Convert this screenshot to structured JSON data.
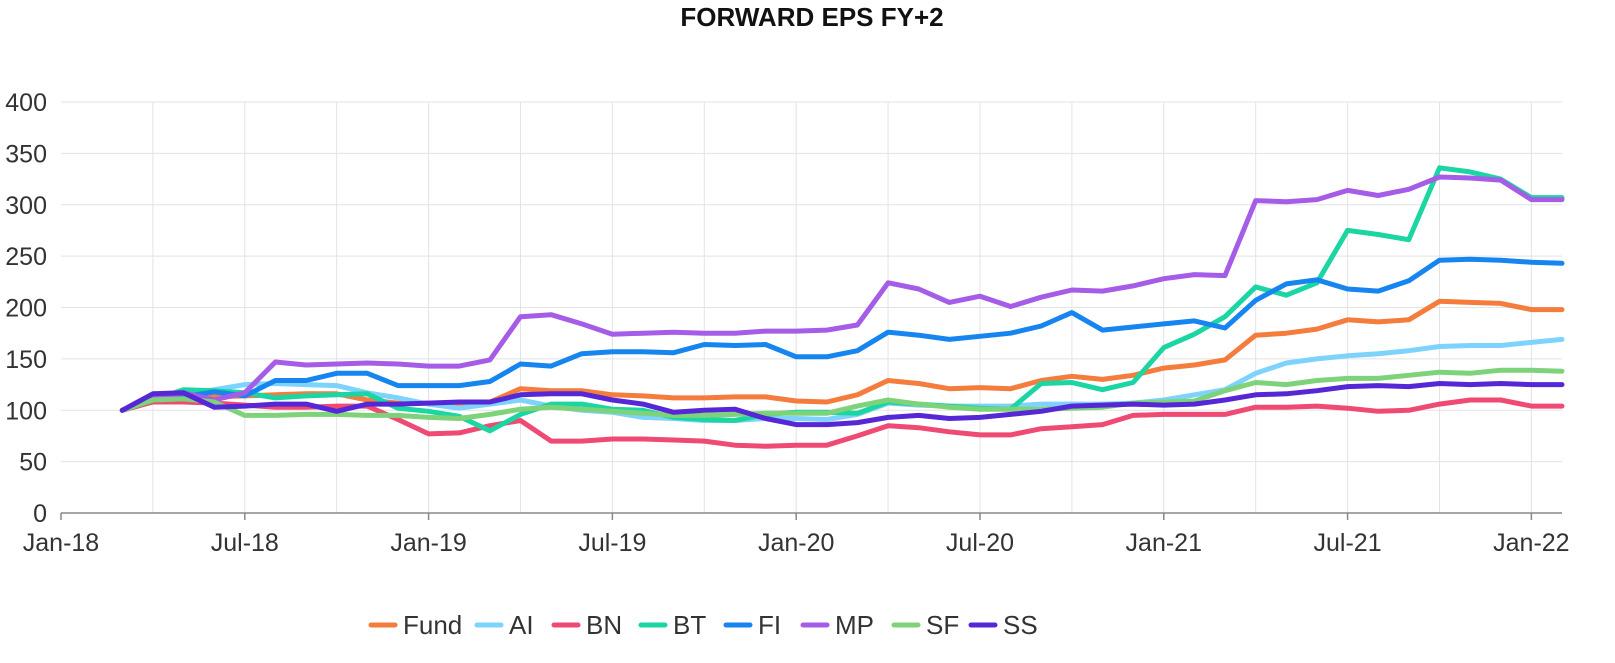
{
  "chart_data": {
    "type": "line",
    "title": "FORWARD EPS FY+2",
    "xlabel": "",
    "ylabel": "",
    "ylim": [
      0,
      400
    ],
    "yticks": [
      "0",
      "50",
      "100",
      "150",
      "200",
      "250",
      "300",
      "350",
      "400"
    ],
    "xticks": [
      "Jan-18",
      "Jul-18",
      "Jan-19",
      "Jul-19",
      "Jan-20",
      "Jul-20",
      "Jan-21",
      "Jul-21",
      "Jan-22"
    ],
    "grid": true,
    "legend": "bottom",
    "x": [
      "Mar-18",
      "Apr-18",
      "May-18",
      "Jun-18",
      "Jul-18",
      "Aug-18",
      "Sep-18",
      "Oct-18",
      "Nov-18",
      "Dec-18",
      "Jan-19",
      "Feb-19",
      "Mar-19",
      "Apr-19",
      "May-19",
      "Jun-19",
      "Jul-19",
      "Aug-19",
      "Sep-19",
      "Oct-19",
      "Nov-19",
      "Dec-19",
      "Jan-20",
      "Feb-20",
      "Mar-20",
      "Apr-20",
      "May-20",
      "Jun-20",
      "Jul-20",
      "Aug-20",
      "Sep-20",
      "Oct-20",
      "Nov-20",
      "Dec-20",
      "Jan-21",
      "Feb-21",
      "Mar-21",
      "Apr-21",
      "May-21",
      "Jun-21",
      "Jul-21",
      "Aug-21",
      "Sep-21",
      "Oct-21",
      "Nov-21",
      "Dec-21",
      "Jan-22",
      "Feb-22"
    ],
    "series": [
      {
        "name": "Fund",
        "color": "#f47c3c",
        "values": [
          100,
          112,
          112,
          113,
          114,
          115,
          116,
          116,
          110,
          107,
          107,
          107,
          108,
          121,
          119,
          119,
          115,
          114,
          112,
          112,
          113,
          113,
          109,
          108,
          115,
          129,
          126,
          121,
          122,
          121,
          129,
          133,
          130,
          134,
          141,
          144,
          149,
          173,
          175,
          179,
          188,
          186,
          188,
          206,
          205,
          204,
          198,
          198
        ]
      },
      {
        "name": "AI",
        "color": "#7dd3fb",
        "values": [
          100,
          112,
          115,
          120,
          125,
          126,
          125,
          124,
          117,
          112,
          106,
          102,
          106,
          110,
          104,
          100,
          98,
          93,
          92,
          90,
          90,
          92,
          92,
          91,
          96,
          107,
          105,
          104,
          104,
          104,
          106,
          106,
          106,
          107,
          110,
          115,
          120,
          136,
          146,
          150,
          153,
          155,
          158,
          162,
          163,
          163,
          166,
          169
        ]
      },
      {
        "name": "BN",
        "color": "#ee4a73",
        "values": [
          100,
          108,
          108,
          107,
          105,
          103,
          103,
          104,
          104,
          91,
          77,
          78,
          85,
          90,
          70,
          70,
          72,
          72,
          71,
          70,
          66,
          65,
          66,
          66,
          75,
          85,
          83,
          79,
          76,
          76,
          82,
          84,
          86,
          95,
          96,
          96,
          96,
          103,
          103,
          104,
          102,
          99,
          100,
          106,
          110,
          110,
          104,
          104
        ]
      },
      {
        "name": "BT",
        "color": "#1bd6a2",
        "values": [
          100,
          110,
          120,
          119,
          117,
          112,
          114,
          115,
          116,
          102,
          99,
          94,
          80,
          96,
          106,
          106,
          101,
          100,
          93,
          91,
          90,
          96,
          98,
          98,
          97,
          108,
          106,
          104,
          102,
          101,
          126,
          127,
          120,
          127,
          161,
          174,
          191,
          220,
          212,
          224,
          275,
          271,
          266,
          336,
          332,
          325,
          307,
          307
        ]
      },
      {
        "name": "FI",
        "color": "#1685f0",
        "values": [
          100,
          111,
          113,
          118,
          114,
          129,
          129,
          136,
          136,
          124,
          124,
          124,
          128,
          145,
          143,
          155,
          157,
          157,
          156,
          164,
          163,
          164,
          152,
          152,
          158,
          176,
          173,
          169,
          172,
          175,
          182,
          195,
          178,
          181,
          184,
          187,
          180,
          207,
          223,
          227,
          218,
          216,
          226,
          246,
          247,
          246,
          244,
          243
        ]
      },
      {
        "name": "MP",
        "color": "#a55de8",
        "values": [
          100,
          112,
          117,
          110,
          117,
          147,
          144,
          145,
          146,
          145,
          143,
          143,
          149,
          191,
          193,
          184,
          174,
          175,
          176,
          175,
          175,
          177,
          177,
          178,
          183,
          224,
          218,
          205,
          211,
          201,
          210,
          217,
          216,
          221,
          228,
          232,
          231,
          304,
          303,
          305,
          314,
          309,
          315,
          327,
          326,
          324,
          305,
          305
        ]
      },
      {
        "name": "SF",
        "color": "#7ed37a",
        "values": [
          100,
          110,
          111,
          108,
          95,
          95,
          96,
          96,
          95,
          95,
          93,
          92,
          96,
          101,
          103,
          101,
          99,
          97,
          95,
          95,
          96,
          97,
          97,
          97,
          104,
          110,
          106,
          103,
          101,
          101,
          101,
          102,
          103,
          107,
          108,
          109,
          119,
          127,
          125,
          129,
          131,
          131,
          134,
          137,
          136,
          139,
          139,
          138
        ]
      },
      {
        "name": "SS",
        "color": "#5527d6",
        "values": [
          100,
          116,
          117,
          103,
          104,
          106,
          106,
          99,
          106,
          106,
          107,
          108,
          108,
          115,
          116,
          116,
          110,
          106,
          98,
          100,
          101,
          92,
          86,
          86,
          88,
          93,
          95,
          92,
          93,
          96,
          99,
          104,
          105,
          106,
          105,
          106,
          110,
          115,
          116,
          119,
          123,
          124,
          123,
          126,
          125,
          126,
          125,
          125
        ]
      }
    ]
  }
}
